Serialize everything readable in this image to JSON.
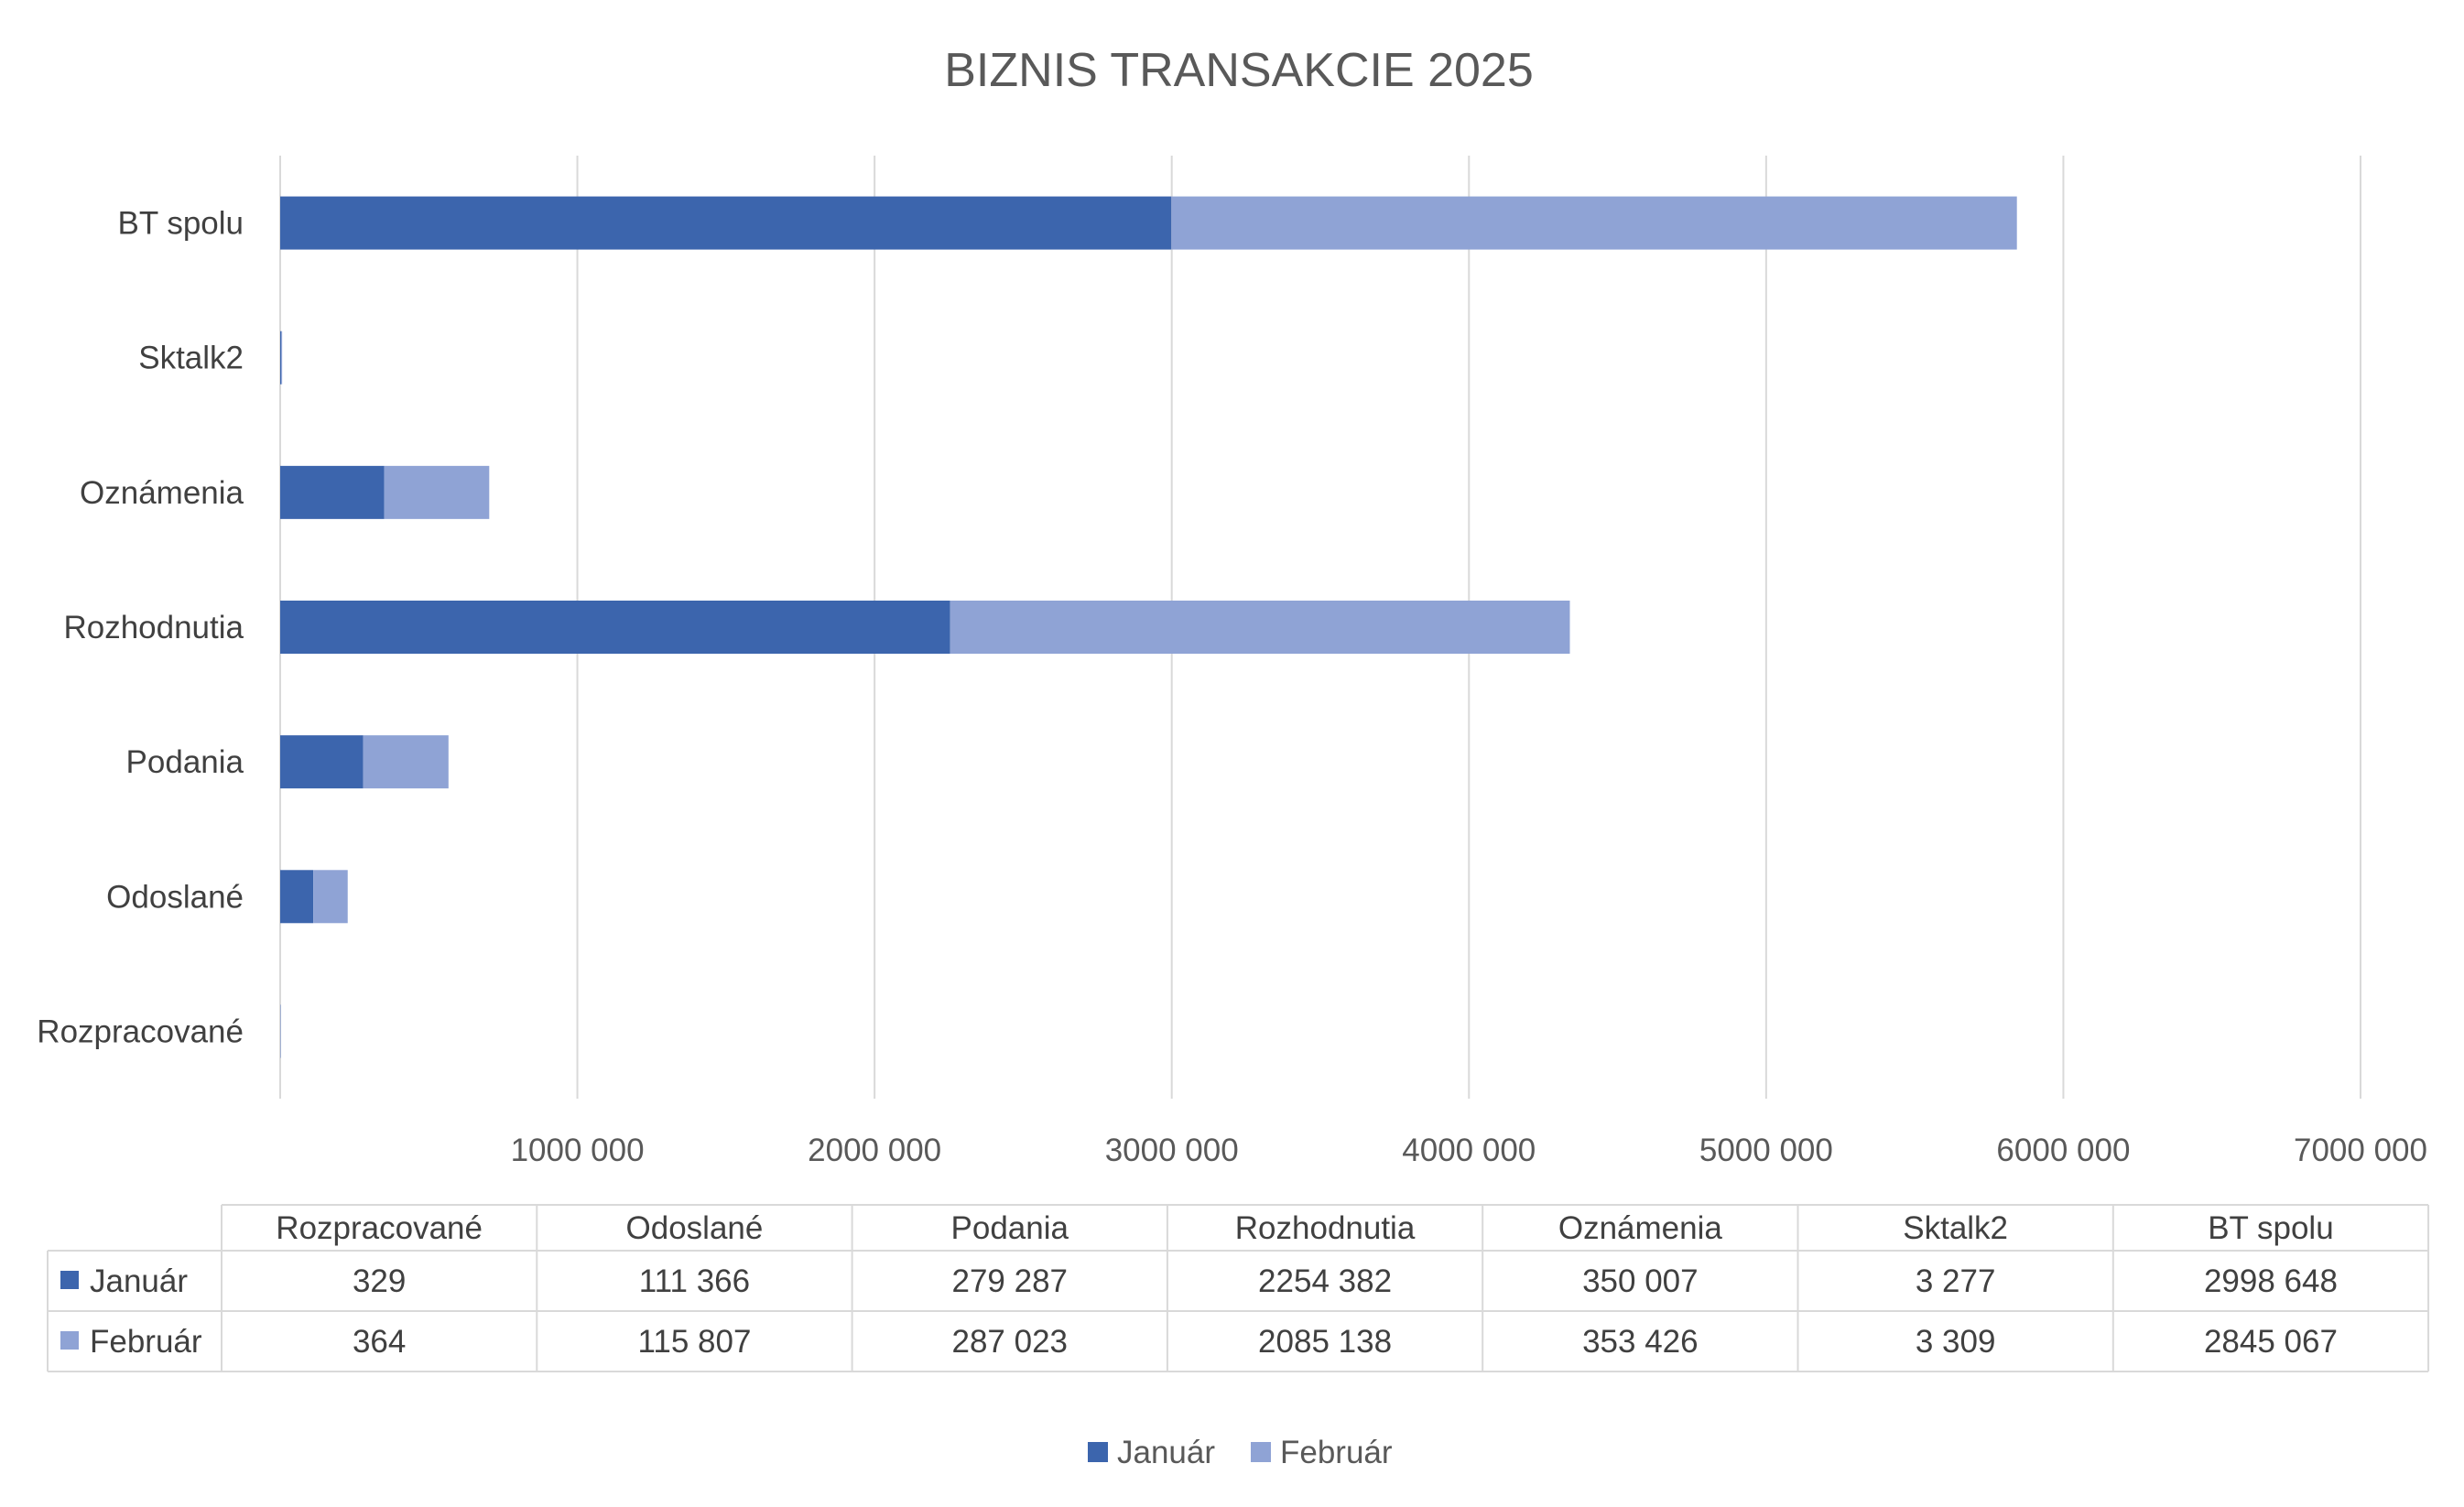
{
  "chart_data": {
    "type": "bar",
    "orientation": "horizontal",
    "stacked": true,
    "title": "BIZNIS TRANSAKCIE 2025",
    "categories": [
      "Rozpracované",
      "Odoslané",
      "Podania",
      "Rozhodnutia",
      "Oznámenia",
      "Sktalk2",
      "BT spolu"
    ],
    "series": [
      {
        "name": "Január",
        "color": "#3c65ad",
        "values": [
          329,
          111366,
          279287,
          2254382,
          350007,
          3277,
          2998648
        ],
        "labels": [
          "329",
          "111 366",
          "279 287",
          "2254 382",
          "350 007",
          "3 277",
          "2998 648"
        ]
      },
      {
        "name": "Február",
        "color": "#8fa3d5",
        "values": [
          364,
          115807,
          287023,
          2085138,
          353426,
          3309,
          2845067
        ],
        "labels": [
          "364",
          "115 807",
          "287 023",
          "2085 138",
          "353 426",
          "3 309",
          "2845 067"
        ]
      }
    ],
    "xlim": [
      0,
      7000000
    ],
    "x_ticks": [
      0,
      1000000,
      2000000,
      3000000,
      4000000,
      5000000,
      6000000,
      7000000
    ],
    "x_tick_labels": [
      "",
      "1000 000",
      "2000 000",
      "3000 000",
      "4000 000",
      "5000 000",
      "6000 000",
      "7000 000"
    ],
    "grid": true,
    "data_table": true,
    "legend": "bottom"
  }
}
